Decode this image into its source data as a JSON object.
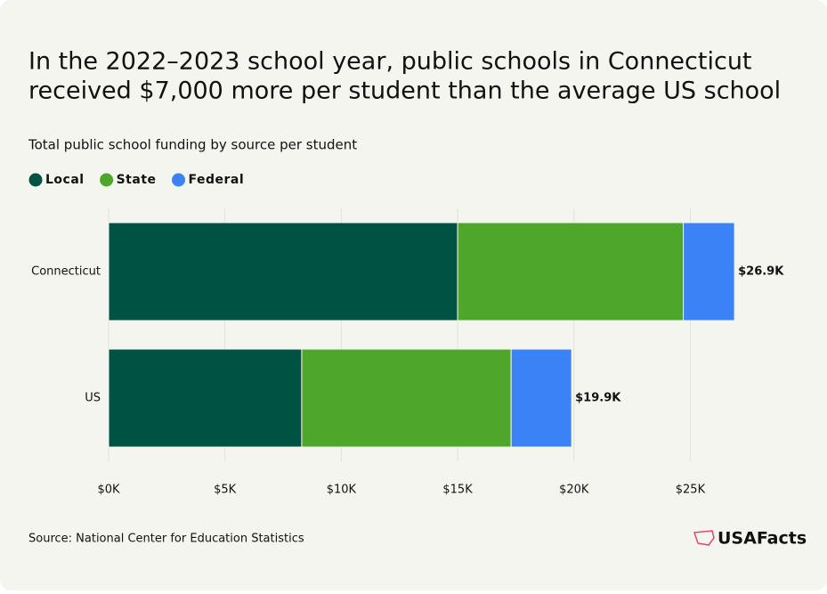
{
  "chart_data": {
    "type": "stacked-barh",
    "title": [
      "In the 2022–2023 school year, public schools in Connecticut",
      "received $7,000 more per student than the average US school"
    ],
    "subtitle": "Total public school funding by source per student",
    "categories": [
      "Connecticut",
      "US"
    ],
    "series": [
      {
        "name": "Local",
        "color": "#005343",
        "values": [
          15000,
          8300
        ]
      },
      {
        "name": "State",
        "color": "#4ea72a",
        "values": [
          9700,
          9000
        ]
      },
      {
        "name": "Federal",
        "color": "#3b82f6",
        "values": [
          2200,
          2600
        ]
      }
    ],
    "totals": [
      26900,
      19900
    ],
    "total_labels": [
      "$26.9K",
      "$19.9K"
    ],
    "xlim": [
      0,
      29000
    ],
    "xticks": [
      {
        "value": 0,
        "label": "$0K"
      },
      {
        "value": 5000,
        "label": "$5K"
      },
      {
        "value": 10000,
        "label": "$10K"
      },
      {
        "value": 15000,
        "label": "$15K"
      },
      {
        "value": 20000,
        "label": "$20K"
      },
      {
        "value": 25000,
        "label": "$25K"
      }
    ],
    "grid": true,
    "source": "Source: National Center for Education Statistics",
    "brand": "USAFacts"
  }
}
